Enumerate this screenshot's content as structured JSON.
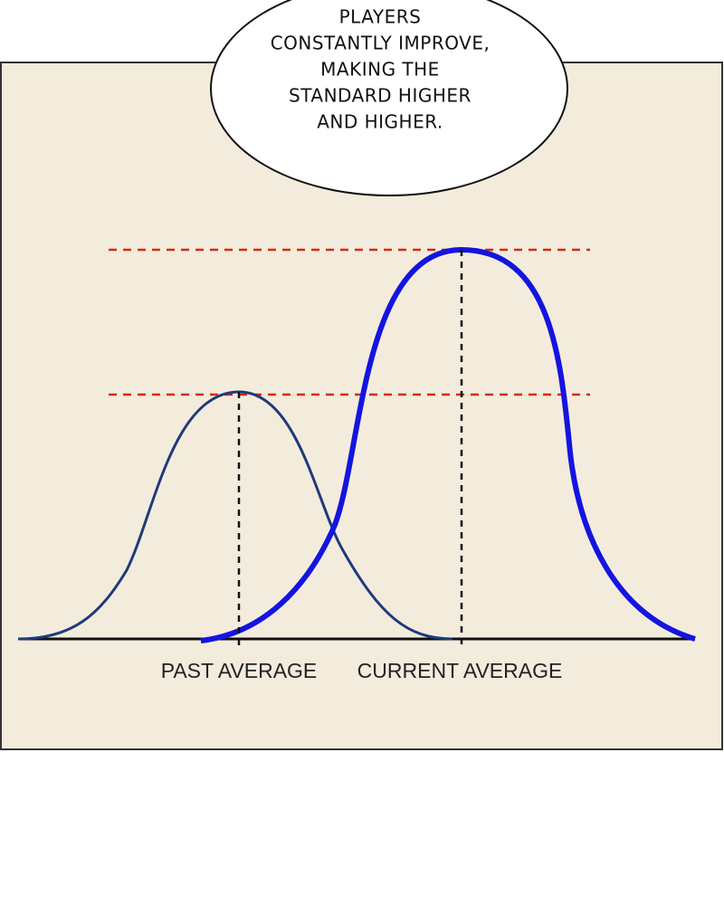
{
  "speech_bubble": {
    "lines": [
      "PLAYERS",
      "CONSTANTLY IMPROVE,",
      "MAKING THE",
      "STANDARD HIGHER",
      "AND HIGHER."
    ]
  },
  "labels": [
    "PAST AVERAGE",
    "CURRENT AVERAGE"
  ]
}
